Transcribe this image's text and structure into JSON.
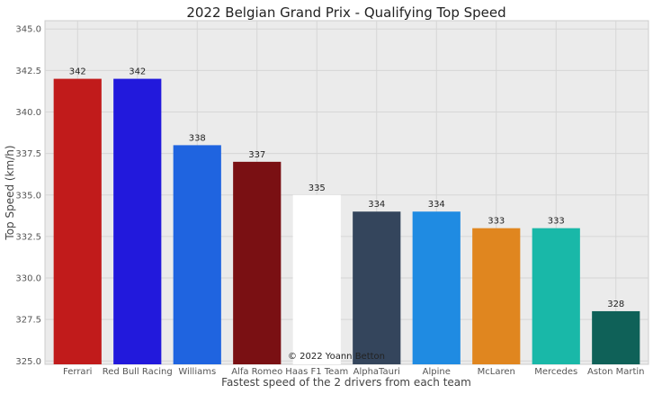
{
  "chart_data": {
    "type": "bar",
    "title": "2022 Belgian Grand Prix - Qualifying Top Speed",
    "xlabel": "Fastest speed of the 2 drivers from each team",
    "ylabel": "Top Speed (km/h)",
    "ylim": [
      324.8,
      345.5
    ],
    "yticks": [
      "325.0",
      "327.5",
      "330.0",
      "332.5",
      "335.0",
      "337.5",
      "340.0",
      "342.5",
      "345.0"
    ],
    "grid": true,
    "categories": [
      "Ferrari",
      "Red Bull Racing",
      "Williams",
      "Alfa Romeo",
      "Haas F1 Team",
      "AlphaTauri",
      "Alpine",
      "McLaren",
      "Mercedes",
      "Aston Martin"
    ],
    "values": [
      342,
      342,
      338,
      337,
      335,
      334,
      334,
      333,
      333,
      328
    ],
    "data_labels": [
      "342",
      "342",
      "338",
      "337",
      "335",
      "334",
      "334",
      "333",
      "333",
      "328"
    ],
    "colors": [
      "#c11b1b",
      "#2219dc",
      "#1f64e0",
      "#7a1013",
      "#ffffff",
      "#34455c",
      "#1f8be2",
      "#e0861f",
      "#19b8a8",
      "#0f6158"
    ],
    "watermark": "© 2022 Yoann Betton"
  }
}
